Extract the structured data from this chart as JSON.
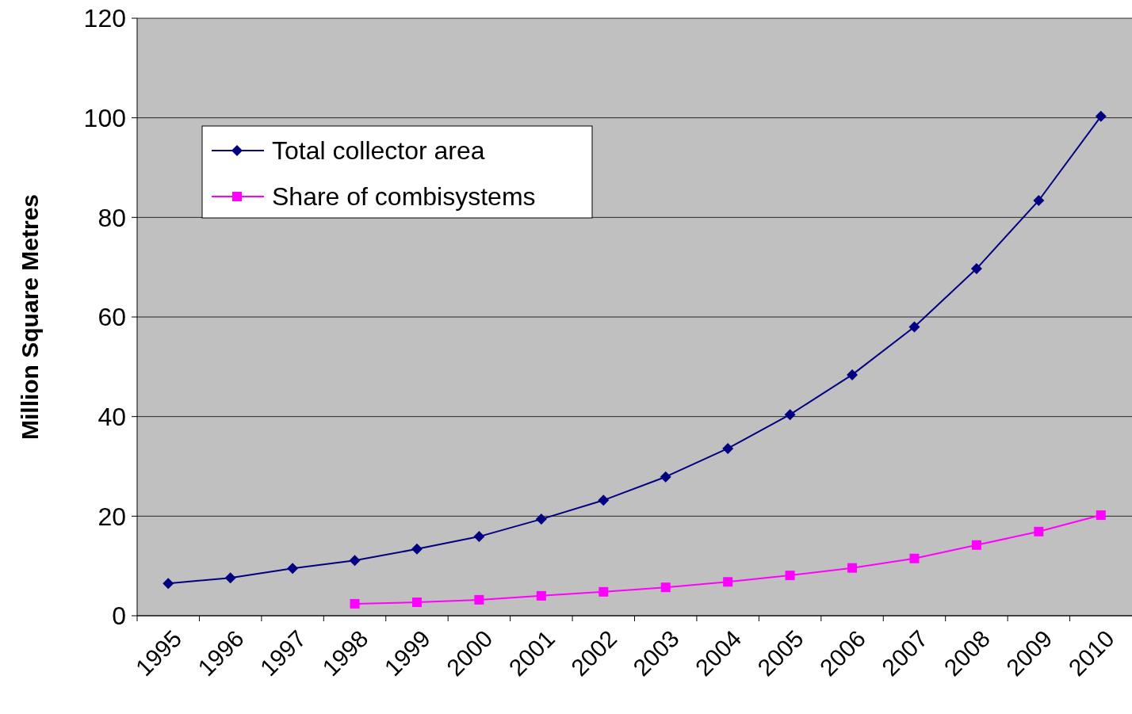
{
  "chart_data": {
    "type": "line",
    "ylabel": "Million Square Metres",
    "categories": [
      "1995",
      "1996",
      "1997",
      "1998",
      "1999",
      "2000",
      "2001",
      "2002",
      "2003",
      "2004",
      "2005",
      "2006",
      "2007",
      "2008",
      "2009",
      "2010"
    ],
    "series": [
      {
        "name": "Total collector area",
        "color": "#000080",
        "marker": "diamond",
        "values": [
          6.5,
          7.6,
          9.5,
          11.1,
          13.4,
          15.9,
          19.4,
          23.2,
          27.9,
          33.6,
          40.4,
          48.4,
          58,
          69.7,
          83.4,
          100.3
        ]
      },
      {
        "name": "Share of combisystems",
        "color": "#ff00ff",
        "marker": "square",
        "values": [
          null,
          null,
          null,
          2.4,
          2.7,
          3.2,
          4.0,
          4.8,
          5.7,
          6.8,
          8.1,
          9.6,
          11.5,
          14.2,
          16.9,
          20.2
        ]
      }
    ],
    "ylim": [
      0,
      120
    ],
    "yticks": [
      0,
      20,
      40,
      60,
      80,
      100,
      120
    ],
    "grid": "y",
    "legend": "top left",
    "line_style": "solid"
  }
}
